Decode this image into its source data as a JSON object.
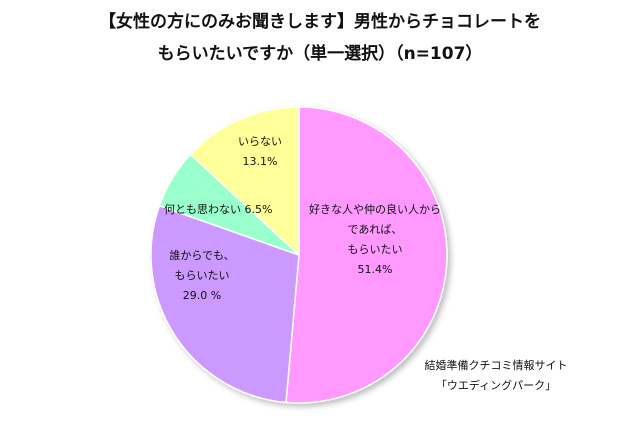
{
  "title_lines": [
    "【女性の方にのみお聞きします】男性からチョコレートを",
    "もらいたいですか（単一選択）（n=107）"
  ],
  "chart_data": {
    "type": "pie",
    "slices": [
      {
        "label_lines": [
          "好きな人や仲の良い人から",
          "であれば、",
          "もらいたい",
          "51.4%"
        ],
        "value": 51.4,
        "color": "#ff99ff"
      },
      {
        "label_lines": [
          "誰からでも、",
          "もらいたい",
          "29.0 %"
        ],
        "value": 29.0,
        "color": "#cc99ff"
      },
      {
        "label_lines": [
          "何とも思わない 6.5%"
        ],
        "value": 6.5,
        "color": "#99ffcc"
      },
      {
        "label_lines": [
          "いらない",
          "13.1%"
        ],
        "value": 13.1,
        "color": "#ffff99"
      }
    ],
    "source_lines": [
      "結婚準備クチコミ情報サイト",
      "「ウエディングパーク」"
    ]
  }
}
